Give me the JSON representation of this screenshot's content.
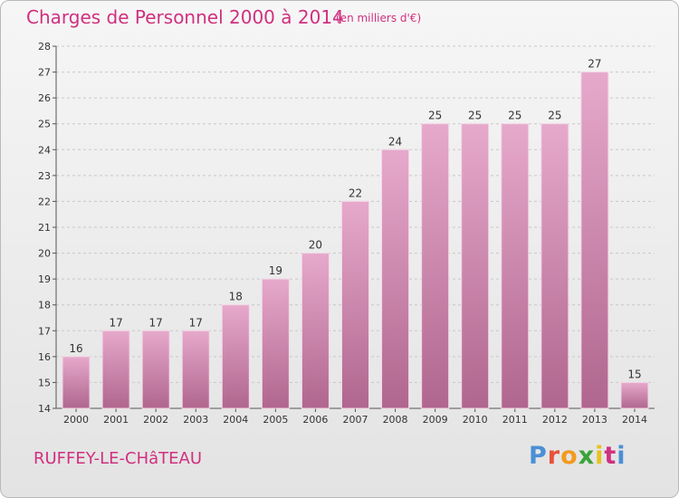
{
  "header": {
    "title": "Charges de Personnel 2000 à 2014",
    "subtitle": "(en milliers d'€)"
  },
  "footer": {
    "place": "RUFFEY-LE-CHâTEAU",
    "logo": "Proxiti",
    "logo_colors": [
      "#4a8fd6",
      "#e8513a",
      "#f39a1f",
      "#3aa33a",
      "#e7c21b",
      "#d0307f",
      "#4a8fd6"
    ]
  },
  "colors": {
    "bar_top": "#e6a9cc",
    "bar_bottom": "#b0668e",
    "text": "#333333",
    "accent": "#d0307f"
  },
  "chart_data": {
    "type": "bar",
    "title": "Charges de Personnel 2000 à 2014",
    "categories": [
      "2000",
      "2001",
      "2002",
      "2003",
      "2004",
      "2005",
      "2006",
      "2007",
      "2008",
      "2009",
      "2010",
      "2011",
      "2012",
      "2013",
      "2014"
    ],
    "values": [
      16,
      17,
      17,
      17,
      18,
      19,
      20,
      22,
      24,
      25,
      25,
      25,
      25,
      27,
      15
    ],
    "ylim": [
      14,
      28
    ],
    "yticks": [
      14,
      15,
      16,
      17,
      18,
      19,
      20,
      21,
      22,
      23,
      24,
      25,
      26,
      27,
      28
    ],
    "grid": true,
    "grid_style": "dashed-horizontal"
  }
}
